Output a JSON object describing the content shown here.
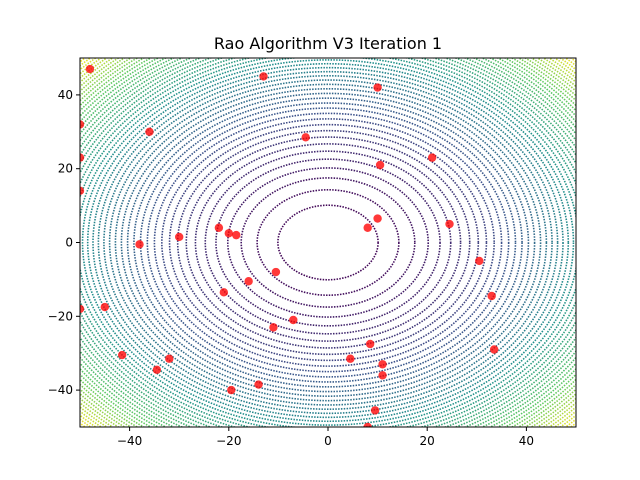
{
  "chart_data": {
    "type": "scatter",
    "title": "Rao Algorithm V3 Iteration 1",
    "xlabel": "",
    "ylabel": "",
    "xlim": [
      -50,
      50
    ],
    "ylim": [
      -50,
      50
    ],
    "grid": false,
    "background": "contour-of-sphere-function",
    "colormap": "viridis",
    "marker_color": "#ff0000",
    "xticks": [
      -40,
      -20,
      0,
      20,
      40
    ],
    "yticks": [
      -40,
      -20,
      0,
      20,
      40
    ],
    "xtick_labels": [
      "−40",
      "−20",
      "0",
      "20",
      "40"
    ],
    "ytick_labels": [
      "−40",
      "−20",
      "0",
      "20",
      "40"
    ],
    "points": [
      {
        "x": -48,
        "y": 47
      },
      {
        "x": -13,
        "y": 45
      },
      {
        "x": 10,
        "y": 42
      },
      {
        "x": -50,
        "y": 32
      },
      {
        "x": -36,
        "y": 30
      },
      {
        "x": -4.5,
        "y": 28.5
      },
      {
        "x": -50,
        "y": 23
      },
      {
        "x": 21,
        "y": 23
      },
      {
        "x": 10.5,
        "y": 21
      },
      {
        "x": -50,
        "y": 14
      },
      {
        "x": 10,
        "y": 6.5
      },
      {
        "x": 24.5,
        "y": 5
      },
      {
        "x": -22,
        "y": 4
      },
      {
        "x": 8,
        "y": 4
      },
      {
        "x": -20,
        "y": 2.5
      },
      {
        "x": -18.5,
        "y": 2
      },
      {
        "x": -30,
        "y": 1.5
      },
      {
        "x": -38,
        "y": -0.5
      },
      {
        "x": 30.5,
        "y": -5
      },
      {
        "x": -10.5,
        "y": -8
      },
      {
        "x": -16,
        "y": -10.5
      },
      {
        "x": -21,
        "y": -13.5
      },
      {
        "x": 33,
        "y": -14.5
      },
      {
        "x": -45,
        "y": -17.5
      },
      {
        "x": -50,
        "y": -18
      },
      {
        "x": -7,
        "y": -21
      },
      {
        "x": -11,
        "y": -23
      },
      {
        "x": 8.5,
        "y": -27.5
      },
      {
        "x": 33.5,
        "y": -29
      },
      {
        "x": -41.5,
        "y": -30.5
      },
      {
        "x": -32,
        "y": -31.5
      },
      {
        "x": 4.5,
        "y": -31.5
      },
      {
        "x": 11,
        "y": -33
      },
      {
        "x": -34.5,
        "y": -34.5
      },
      {
        "x": 11,
        "y": -36
      },
      {
        "x": -14,
        "y": -38.5
      },
      {
        "x": -19.5,
        "y": -40
      },
      {
        "x": 9.5,
        "y": -45.5
      },
      {
        "x": 8,
        "y": -50
      }
    ]
  }
}
